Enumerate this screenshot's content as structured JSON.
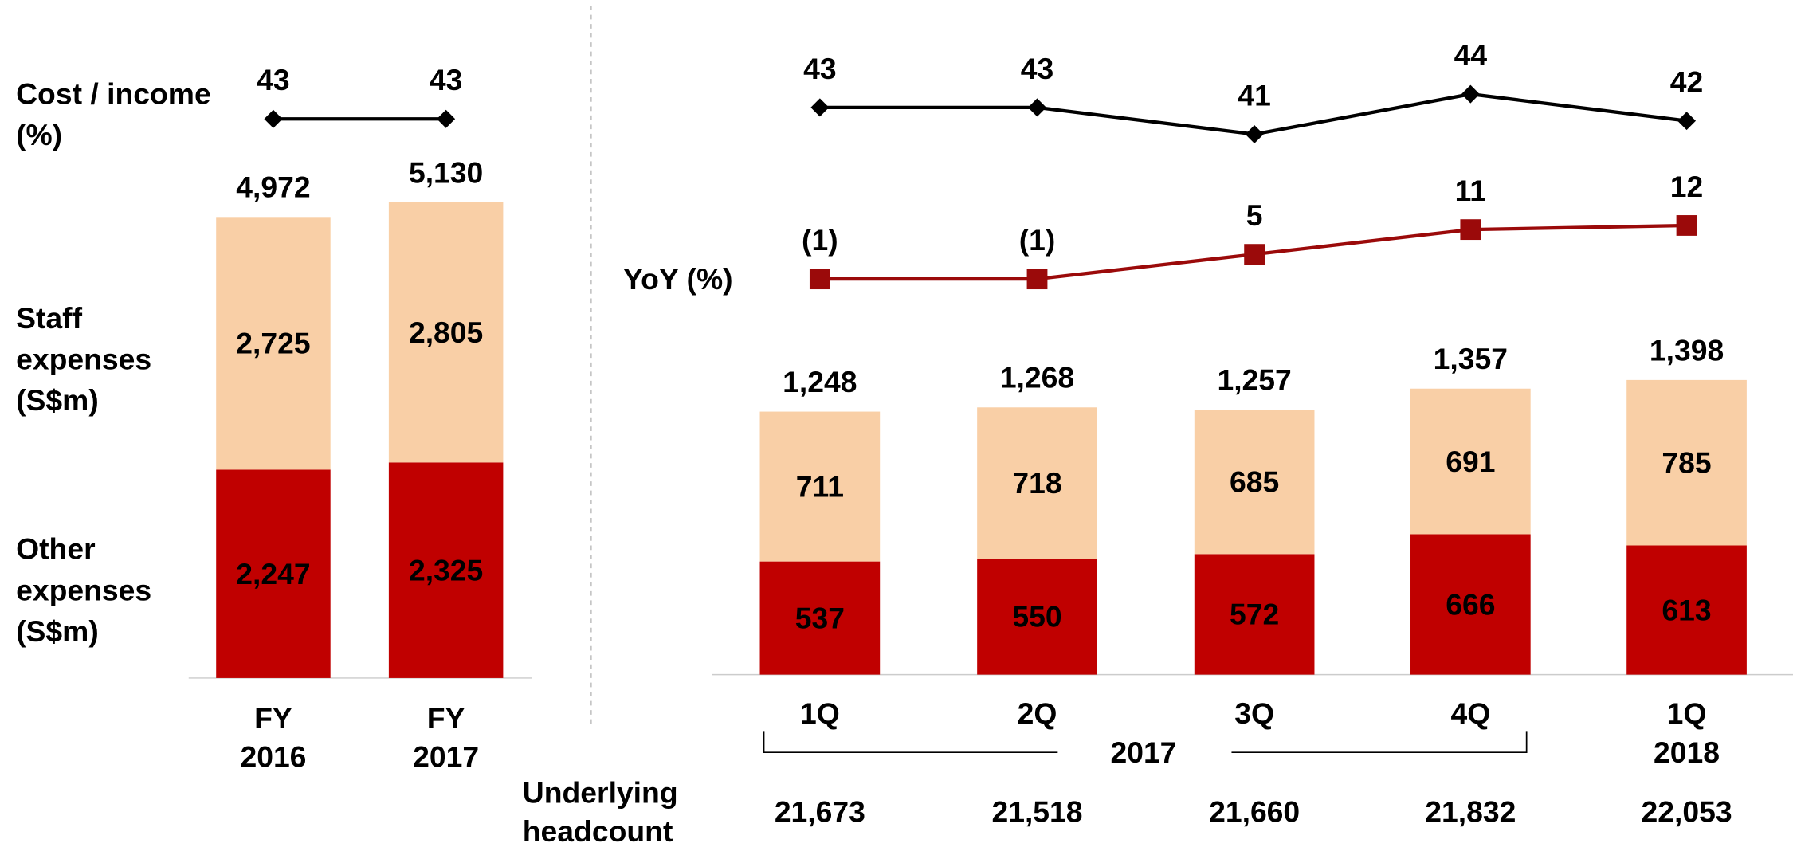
{
  "chart_data": [
    {
      "type": "bar",
      "stacked": true,
      "categories": [
        [
          "FY",
          "2016"
        ],
        [
          "FY",
          "2017"
        ]
      ],
      "series": [
        {
          "name": "Other expenses (S$m)",
          "color": "#c00000",
          "values": [
            2247,
            2325
          ],
          "value_labels": [
            "2,247",
            "2,325"
          ]
        },
        {
          "name": "Staff expenses (S$m)",
          "color": "#f9cfa6",
          "values": [
            2725,
            2805
          ],
          "value_labels": [
            "2,725",
            "2,805"
          ]
        }
      ],
      "total_labels": [
        "4,972",
        "5,130"
      ],
      "lines": [
        {
          "name": "Cost / income (%)",
          "color": "#000000",
          "marker": "diamond",
          "values": [
            43,
            43
          ]
        }
      ]
    },
    {
      "type": "bar",
      "stacked": true,
      "categories": [
        "1Q",
        "2Q",
        "3Q",
        "4Q",
        "1Q"
      ],
      "x_groups": [
        "2017",
        "2018"
      ],
      "series": [
        {
          "name": "Other expenses (S$m)",
          "color": "#c00000",
          "values": [
            537,
            550,
            572,
            666,
            613
          ]
        },
        {
          "name": "Staff expenses (S$m)",
          "color": "#f9cfa6",
          "values": [
            711,
            718,
            685,
            691,
            785
          ]
        }
      ],
      "total_labels": [
        "1,248",
        "1,268",
        "1,257",
        "1,357",
        "1,398"
      ],
      "lines": [
        {
          "name": "Cost / income (%)",
          "color": "#000000",
          "marker": "diamond",
          "values": [
            43,
            43,
            41,
            44,
            42
          ]
        },
        {
          "name": "YoY (%)",
          "color": "#9b0a0a",
          "marker": "square",
          "values": [
            -1,
            -1,
            5,
            11,
            12
          ],
          "value_labels": [
            "(1)",
            "(1)",
            "5",
            "11",
            "12"
          ]
        }
      ],
      "headcount": {
        "name": "Underlying headcount",
        "values": [
          21673,
          21518,
          21660,
          21832,
          22053
        ],
        "value_labels": [
          "21,673",
          "21,518",
          "21,660",
          "21,832",
          "22,053"
        ]
      }
    }
  ]
}
